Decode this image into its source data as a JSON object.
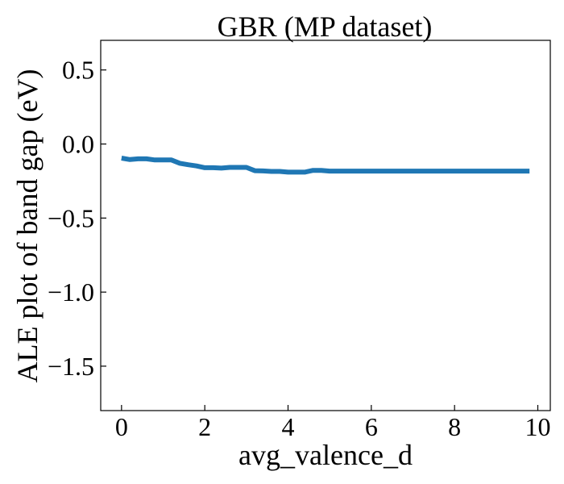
{
  "chart_data": {
    "type": "line",
    "title": "GBR (MP dataset)",
    "xlabel": "avg_valence_d",
    "ylabel": "ALE plot of band gap (eV)",
    "xlim": [
      -0.5,
      10.3
    ],
    "ylim": [
      -1.8,
      0.7
    ],
    "xticks": [
      0,
      2,
      4,
      6,
      8,
      10
    ],
    "xtick_labels": [
      "0",
      "2",
      "4",
      "6",
      "8",
      "10"
    ],
    "yticks": [
      0.5,
      0.0,
      -0.5,
      -1.0,
      -1.5
    ],
    "ytick_labels": [
      "0.5",
      "0.0",
      "−0.5",
      "−1.0",
      "−1.5"
    ],
    "grid": false,
    "line_color": "#1f77b4",
    "series": [
      {
        "x": [
          0.0,
          0.2,
          0.4,
          0.6,
          0.8,
          1.0,
          1.2,
          1.4,
          1.6,
          1.8,
          2.0,
          2.2,
          2.4,
          2.6,
          2.8,
          3.0,
          3.2,
          3.4,
          3.6,
          3.8,
          4.0,
          4.2,
          4.4,
          4.6,
          4.8,
          5.0,
          5.2,
          6.0,
          7.0,
          8.0,
          9.0,
          9.8
        ],
        "y": [
          -0.095,
          -0.105,
          -0.1,
          -0.1,
          -0.108,
          -0.107,
          -0.108,
          -0.13,
          -0.14,
          -0.148,
          -0.16,
          -0.16,
          -0.163,
          -0.158,
          -0.158,
          -0.158,
          -0.18,
          -0.182,
          -0.185,
          -0.185,
          -0.19,
          -0.19,
          -0.19,
          -0.178,
          -0.178,
          -0.183,
          -0.183,
          -0.183,
          -0.183,
          -0.183,
          -0.183,
          -0.183
        ]
      }
    ]
  }
}
